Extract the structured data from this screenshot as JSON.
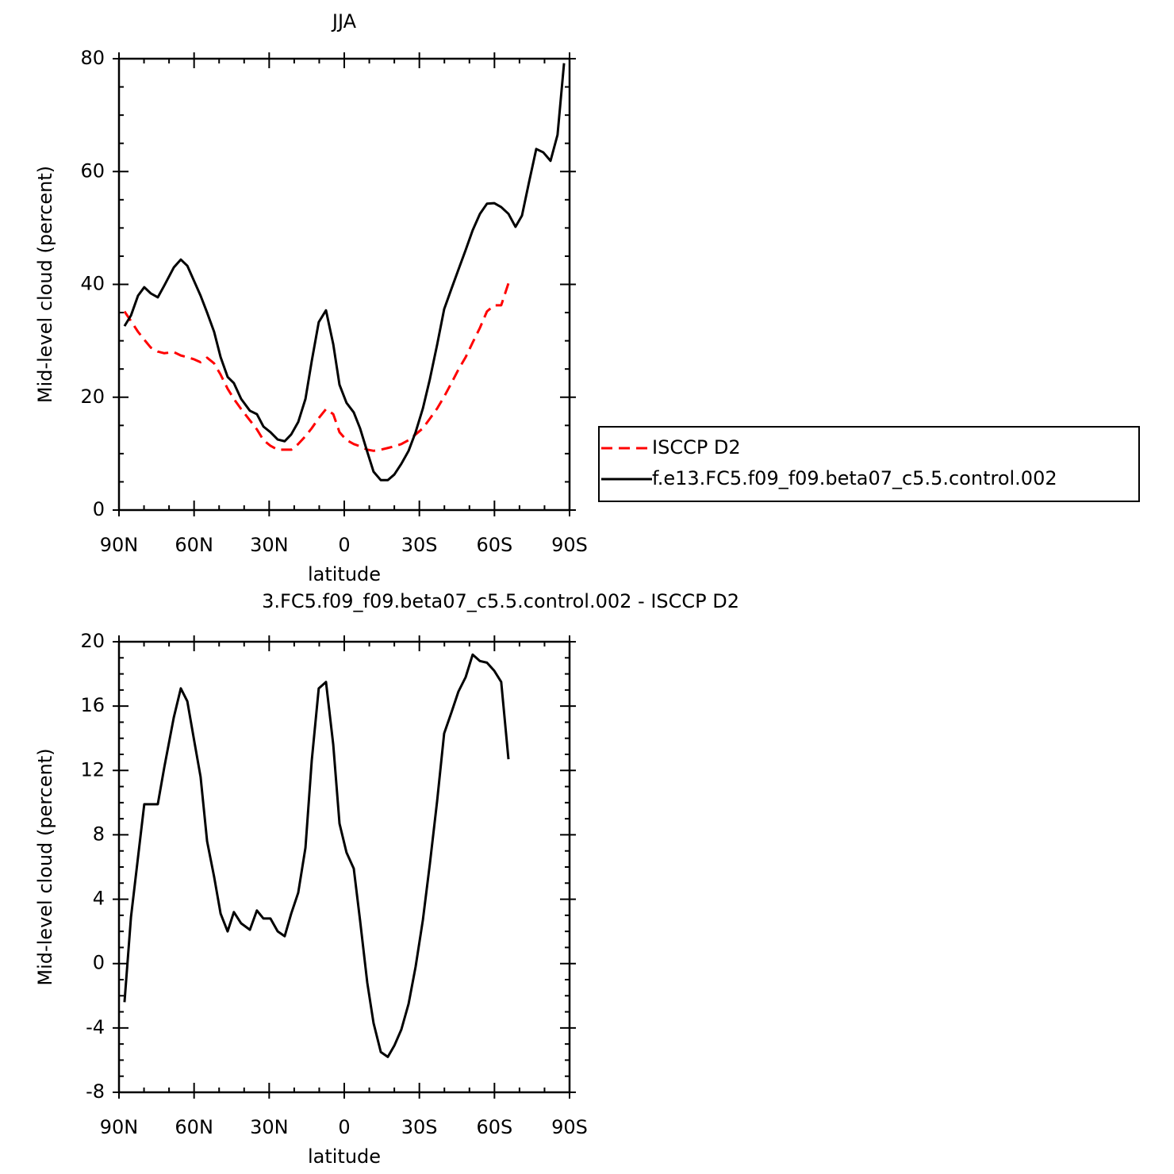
{
  "chart_data": [
    {
      "type": "line",
      "title": "JJA",
      "xlabel": "latitude",
      "ylabel": "Mid-level cloud (percent)",
      "x": [
        87.8,
        85.2,
        82.4,
        79.9,
        77.3,
        74.5,
        71.9,
        68.1,
        65.3,
        62.7,
        59.9,
        57.4,
        54.8,
        52,
        49.4,
        46.6,
        44.1,
        41.2,
        37.7,
        34.9,
        32.3,
        29.5,
        26.6,
        23.8,
        21.2,
        18.4,
        15.5,
        13,
        10.2,
        7.3,
        4.4,
        1.9,
        -0.9,
        -3.8,
        -6.3,
        -9.2,
        -11.7,
        -14.6,
        -17.4,
        -20,
        -22.8,
        -25.7,
        -28.5,
        -31.4,
        -34.2,
        -37.1,
        -39.9,
        -42.8,
        -45.6,
        -48.5,
        -51.3,
        -54.2,
        -57,
        -59.9,
        -62.7,
        -65.6,
        -68.4,
        -71,
        -73.8,
        -76.7,
        -79.5,
        -82.4,
        -85.2,
        -87.8
      ],
      "xlim": [
        90,
        -90
      ],
      "xticks": [
        {
          "value": 90,
          "label": "90N"
        },
        {
          "value": 60,
          "label": "60N"
        },
        {
          "value": 30,
          "label": "30N"
        },
        0,
        {
          "value": -30,
          "label": "30S"
        },
        {
          "value": -60,
          "label": "60S"
        },
        {
          "value": -90,
          "label": "90S"
        }
      ],
      "xminorticks": [
        80,
        70,
        50,
        40,
        20,
        10,
        -10,
        -20,
        -40,
        -50,
        -70,
        -80
      ],
      "ylim": [
        0,
        80
      ],
      "yticks": [
        0,
        20,
        40,
        60,
        80
      ],
      "yminorticks": [
        5,
        10,
        15,
        25,
        30,
        35,
        45,
        50,
        55,
        65,
        70,
        75
      ],
      "legend": "right",
      "series": [
        {
          "name": "ISCCP D2",
          "color": "#ff0000",
          "dashed": true,
          "values": [
            35.2,
            33.5,
            31.6,
            30.2,
            28.8,
            28.1,
            27.8,
            28,
            27.4,
            27.1,
            26.7,
            26.2,
            27,
            26,
            24,
            21.5,
            19.7,
            17.9,
            15.9,
            14.3,
            12.4,
            11.4,
            10.7,
            10.7,
            10.7,
            11.7,
            13.1,
            14.5,
            16.3,
            17.9,
            17,
            13.8,
            12.4,
            11.7,
            11.3,
            10.7,
            10.5,
            10.7,
            11,
            11.3,
            11.7,
            12.4,
            13.4,
            14.5,
            16.2,
            18,
            20.1,
            22.5,
            24.9,
            27.1,
            29.7,
            32.3,
            35.2,
            36.3,
            36.3,
            40.2,
            null,
            null,
            null,
            null,
            null,
            null,
            null,
            null
          ]
        },
        {
          "name": "f.e13.FC5.f09_f09.beta07_c5.5.control.002",
          "color": "#000000",
          "dashed": false,
          "values": [
            32.6,
            34.5,
            38,
            39.5,
            38.4,
            37.7,
            39.8,
            43,
            44.4,
            43.3,
            40.5,
            38,
            35,
            31.6,
            27.1,
            23.6,
            22.5,
            19.7,
            17.6,
            17,
            14.8,
            13.8,
            12.5,
            12.2,
            13.4,
            15.6,
            19.7,
            26.4,
            33.3,
            35.4,
            29.4,
            22.2,
            19,
            17.3,
            14.5,
            10.3,
            6.8,
            5.3,
            5.3,
            6.3,
            8.2,
            10.5,
            13.8,
            18,
            23.2,
            29.3,
            35.6,
            39.2,
            42.6,
            46.1,
            49.6,
            52.5,
            54.3,
            54.4,
            53.7,
            52.5,
            50.2,
            52.2,
            58.1,
            64,
            63.4,
            61.9,
            66.5,
            79.2
          ]
        }
      ]
    },
    {
      "type": "line",
      "title": "3.FC5.f09_f09.beta07_c5.5.control.002 - ISCCP D2",
      "xlabel": "latitude",
      "ylabel": "Mid-level cloud (percent)",
      "x": [
        87.8,
        85.2,
        82.4,
        79.9,
        77.3,
        74.5,
        71.9,
        68.1,
        65.3,
        62.7,
        59.9,
        57.4,
        54.8,
        52,
        49.4,
        46.6,
        44.1,
        41.2,
        37.7,
        34.9,
        32.3,
        29.5,
        26.6,
        23.8,
        21.2,
        18.4,
        15.5,
        13,
        10.2,
        7.3,
        4.4,
        1.9,
        -0.9,
        -3.8,
        -6.3,
        -9.2,
        -11.7,
        -14.6,
        -17.4,
        -20,
        -22.8,
        -25.7,
        -28.5,
        -31.4,
        -34.2,
        -37.1,
        -39.9,
        -42.8,
        -45.6,
        -48.5,
        -51.3,
        -54.2,
        -57,
        -59.9,
        -62.7,
        -65.6
      ],
      "values": [
        -2.4,
        2.9,
        6.6,
        9.9,
        9.9,
        9.9,
        12.2,
        15.3,
        17.1,
        16.3,
        13.8,
        11.6,
        7.6,
        5.4,
        3.1,
        2,
        3.2,
        2.5,
        2.1,
        3.3,
        2.8,
        2.8,
        2,
        1.7,
        3.1,
        4.4,
        7.2,
        12.6,
        17.1,
        17.5,
        13.6,
        8.7,
        6.9,
        5.9,
        2.7,
        -1.2,
        -3.7,
        -5.5,
        -5.8,
        -5.1,
        -4.1,
        -2.5,
        -0.2,
        2.7,
        6.2,
        10.1,
        14.3,
        15.6,
        16.9,
        17.8,
        19.2,
        18.8,
        18.7,
        18.2,
        17.5,
        12.7
      ],
      "color": "#000000",
      "xlim": [
        90,
        -90
      ],
      "xticks": [
        {
          "value": 90,
          "label": "90N"
        },
        {
          "value": 60,
          "label": "60N"
        },
        {
          "value": 30,
          "label": "30N"
        },
        0,
        {
          "value": -30,
          "label": "30S"
        },
        {
          "value": -60,
          "label": "60S"
        },
        {
          "value": -90,
          "label": "90S"
        }
      ],
      "xminorticks": [
        80,
        70,
        50,
        40,
        20,
        10,
        -10,
        -20,
        -40,
        -50,
        -70,
        -80
      ],
      "ylim": [
        -8,
        20
      ],
      "yticks": [
        -8,
        -4,
        0,
        4,
        8,
        12,
        16,
        20
      ],
      "yminorticks": [
        -7,
        -6,
        -5,
        -3,
        -2,
        -1,
        1,
        2,
        3,
        5,
        6,
        7,
        9,
        10,
        11,
        13,
        14,
        15,
        17,
        18,
        19
      ]
    }
  ]
}
